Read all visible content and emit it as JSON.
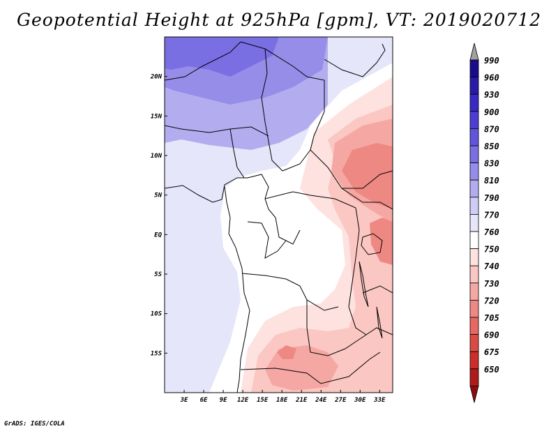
{
  "title": "Geopotential Height at 925hPa [gpm], VT: 2019020712",
  "credit": "GrADS: IGES/COLA",
  "map": {
    "lon_labels": [
      "3E",
      "6E",
      "9E",
      "12E",
      "15E",
      "18E",
      "21E",
      "24E",
      "27E",
      "30E",
      "33E"
    ],
    "lat_labels": [
      "20N",
      "15N",
      "10N",
      "5N",
      "EQ",
      "5S",
      "10S",
      "15S"
    ],
    "lon_range": [
      0,
      35
    ],
    "lat_range": [
      -20,
      25
    ]
  },
  "colorbar": {
    "labels": [
      "990",
      "960",
      "930",
      "900",
      "870",
      "850",
      "830",
      "810",
      "790",
      "770",
      "760",
      "750",
      "740",
      "730",
      "720",
      "705",
      "690",
      "675",
      "650"
    ],
    "colors": [
      "#1a0a8c",
      "#2a1aa8",
      "#3a2ac4",
      "#4d3dd4",
      "#6155dc",
      "#7a6fe2",
      "#968de9",
      "#b3adf0",
      "#cfcdf6",
      "#e6e6fa",
      "#ffffff",
      "#fde2e0",
      "#fbc7c3",
      "#f5a8a3",
      "#ee8882",
      "#e66861",
      "#dc4a44",
      "#cc2f2b",
      "#b01a18"
    ],
    "cap_top_color": "#a0a0a0",
    "cap_bottom_color": "#8c0c0c"
  }
}
